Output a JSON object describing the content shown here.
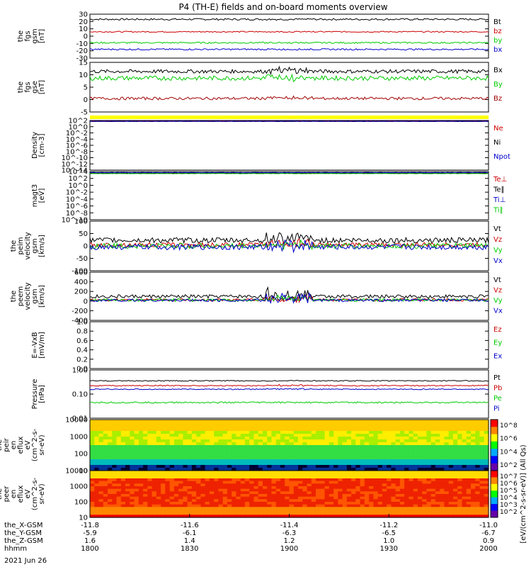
{
  "title": "P4 (TH-E) fields and on-board moments overview",
  "date": "2021 Jun 26",
  "colors": {
    "black": "#000000",
    "red": "#cc0000",
    "green": "#00cc00",
    "blue": "#0000cc",
    "yellow": "#ffff00",
    "darkred": "#a00000"
  },
  "chart_data": [
    {
      "type": "line",
      "id": "fgs",
      "ylabel": [
        "the",
        "fgs",
        "gsm",
        "[nT]"
      ],
      "yticks": [
        "30",
        "20",
        "10",
        "0",
        "-10",
        "-20",
        "-30"
      ],
      "ylim": [
        -30,
        30
      ],
      "series": [
        {
          "name": "Bt",
          "color": "black",
          "mean": 23,
          "noise": 1.2,
          "spike": 0
        },
        {
          "name": "bz",
          "color": "red",
          "mean": 6,
          "noise": 0.8,
          "spike": 0
        },
        {
          "name": "by",
          "color": "green",
          "mean": -9,
          "noise": 1.0,
          "spike": 0
        },
        {
          "name": "bx",
          "color": "blue",
          "mean": -18,
          "noise": 1.0,
          "spike": 0
        }
      ]
    },
    {
      "type": "line",
      "id": "fgs-gse",
      "ylabel": [
        "the",
        "fgs",
        "gse",
        "[nT]"
      ],
      "yticks": [
        "15",
        "10",
        "5",
        "0",
        "-5"
      ],
      "ylim": [
        -7,
        15
      ],
      "series": [
        {
          "name": "Bx",
          "color": "black",
          "mean": 11,
          "noise": 0.8,
          "spike": 2
        },
        {
          "name": "By",
          "color": "green",
          "mean": 8,
          "noise": 1.0,
          "spike": 2
        },
        {
          "name": "Bz",
          "color": "darkred",
          "mean": -1,
          "noise": 0.6,
          "spike": 1
        }
      ]
    },
    {
      "type": "line",
      "id": "density",
      "ylabel": [
        "Density",
        "[cm-3]"
      ],
      "yticks": [
        "10^2",
        "10^0",
        "10^-2",
        "10^-4",
        "10^-6",
        "10^-8",
        "10^-10",
        "10^-12",
        "10^-14"
      ],
      "ylim": [
        -14,
        2
      ],
      "series": [
        {
          "name": "Ne",
          "color": "red",
          "mean": 1.8,
          "noise": 0.05,
          "spike": 0
        },
        {
          "name": "Ni",
          "color": "black",
          "mean": 1.7,
          "noise": 0.05,
          "spike": 0
        },
        {
          "name": "Npot",
          "color": "blue",
          "mean": 1.75,
          "noise": 0.05,
          "spike": 0
        }
      ]
    },
    {
      "type": "line",
      "id": "temperature",
      "ylabel": [
        "magt3",
        "[eV]"
      ],
      "yticks": [
        "10^4",
        "10^2",
        "10^0",
        "10^-2",
        "10^-4",
        "10^-6",
        "10^-8",
        "10^-10"
      ],
      "ylim": [
        -10,
        4
      ],
      "series": [
        {
          "name": "Te⊥",
          "color": "red",
          "mean": 3.5,
          "noise": 0.05,
          "spike": 0
        },
        {
          "name": "Te∥",
          "color": "black",
          "mean": 3.6,
          "noise": 0.05,
          "spike": 0
        },
        {
          "name": "Ti⊥",
          "color": "blue",
          "mean": 3.7,
          "noise": 0.05,
          "spike": 0
        },
        {
          "name": "Ti∥",
          "color": "green",
          "mean": 3.4,
          "noise": 0.05,
          "spike": 0
        }
      ]
    },
    {
      "type": "line",
      "id": "peim-velocity",
      "ylabel": [
        "the",
        "peim",
        "velocity",
        "gsm",
        "[km/s]"
      ],
      "yticks": [
        "100",
        "50",
        "0",
        "-50",
        "-100"
      ],
      "ylim": [
        -110,
        110
      ],
      "series": [
        {
          "name": "Vt",
          "color": "black",
          "mean": 25,
          "noise": 12,
          "spike": 40
        },
        {
          "name": "Vz",
          "color": "red",
          "mean": 5,
          "noise": 10,
          "spike": 30
        },
        {
          "name": "Vy",
          "color": "green",
          "mean": 0,
          "noise": 12,
          "spike": 30
        },
        {
          "name": "Vx",
          "color": "blue",
          "mean": -5,
          "noise": 12,
          "spike": 40
        }
      ]
    },
    {
      "type": "line",
      "id": "peem-velocity",
      "ylabel": [
        "the",
        "peem",
        "velocity",
        "gsm",
        "[km/s]"
      ],
      "yticks": [
        "600",
        "400",
        "200",
        "0",
        "-200",
        "-400"
      ],
      "ylim": [
        -450,
        620
      ],
      "series": [
        {
          "name": "Vt",
          "color": "black",
          "mean": 80,
          "noise": 40,
          "spike": 250
        },
        {
          "name": "Vz",
          "color": "red",
          "mean": 5,
          "noise": 30,
          "spike": 120
        },
        {
          "name": "Vy",
          "color": "green",
          "mean": 0,
          "noise": 30,
          "spike": 120
        },
        {
          "name": "Vx",
          "color": "blue",
          "mean": -5,
          "noise": 30,
          "spike": 200
        }
      ]
    },
    {
      "type": "line",
      "id": "efield",
      "ylabel": [
        "E=-VxB",
        "[mV/m]"
      ],
      "yticks": [
        "1.0",
        "0.8",
        "0.6",
        "0.4",
        "0.2",
        "0.0"
      ],
      "ylim": [
        0,
        1
      ],
      "series": [
        {
          "name": "Ez",
          "color": "red",
          "mean": null
        },
        {
          "name": "Ey",
          "color": "green",
          "mean": null
        },
        {
          "name": "Ex",
          "color": "blue",
          "mean": null
        }
      ]
    },
    {
      "type": "line",
      "id": "pressure",
      "ylabel": [
        "Pressure",
        "[nPa]"
      ],
      "yticks": [
        "1.00",
        "0.10",
        "0.01"
      ],
      "ylim": [
        -2,
        0
      ],
      "series": [
        {
          "name": "Pt",
          "color": "black",
          "mean": -0.45,
          "noise": 0.02,
          "spike": 0
        },
        {
          "name": "Pb",
          "color": "red",
          "mean": -0.65,
          "noise": 0.02,
          "spike": 0.05
        },
        {
          "name": "Pe",
          "color": "green",
          "mean": -1.35,
          "noise": 0.03,
          "spike": 0
        },
        {
          "name": "Pi",
          "color": "blue",
          "mean": -0.8,
          "noise": 0.02,
          "spike": 0.05
        }
      ]
    },
    {
      "type": "heatmap",
      "id": "peir-eflux",
      "ylabel": [
        "the",
        "peir",
        "en",
        "eflux",
        "eV",
        "(cm^2-s-",
        "sr-eV)"
      ],
      "yticks": [
        "10000",
        "1000",
        "100",
        "10"
      ],
      "colorbar_ticks": [
        "10^8",
        "10^6",
        "10^4",
        "10^2"
      ]
    },
    {
      "type": "heatmap",
      "id": "peer-eflux",
      "ylabel": [
        "the",
        "peer",
        "en",
        "eflux",
        "eV",
        "(cm^2-s-",
        "sr-eV)"
      ],
      "yticks": [
        "10000",
        "1000",
        "100",
        "10"
      ],
      "colorbar_ticks": [
        "10^7",
        "10^6",
        "10^5",
        "10^4",
        "10^3",
        "10^2"
      ]
    }
  ],
  "colorbar_label": "[eV/(cm^2-s-sr-eV)] (All Qs)",
  "xaxis": {
    "xlim": [
      -11.8,
      -11.0
    ],
    "ticks": [
      "-11.8",
      "-11.6",
      "-11.4",
      "-11.2",
      "-11.0"
    ],
    "rows": [
      {
        "label": "the_X-GSM",
        "values": [
          "-11.8",
          "-11.6",
          "-11.4",
          "-11.2",
          "-11.0"
        ]
      },
      {
        "label": "the_Y-GSM",
        "values": [
          "-5.9",
          "-6.1",
          "-6.3",
          "-6.5",
          "-6.7"
        ]
      },
      {
        "label": "the_Z-GSM",
        "values": [
          "1.6",
          "1.4",
          "1.2",
          "1.0",
          "0.9"
        ]
      },
      {
        "label": "hhmm",
        "values": [
          "1800",
          "1830",
          "1900",
          "1930",
          "2000"
        ]
      }
    ]
  }
}
